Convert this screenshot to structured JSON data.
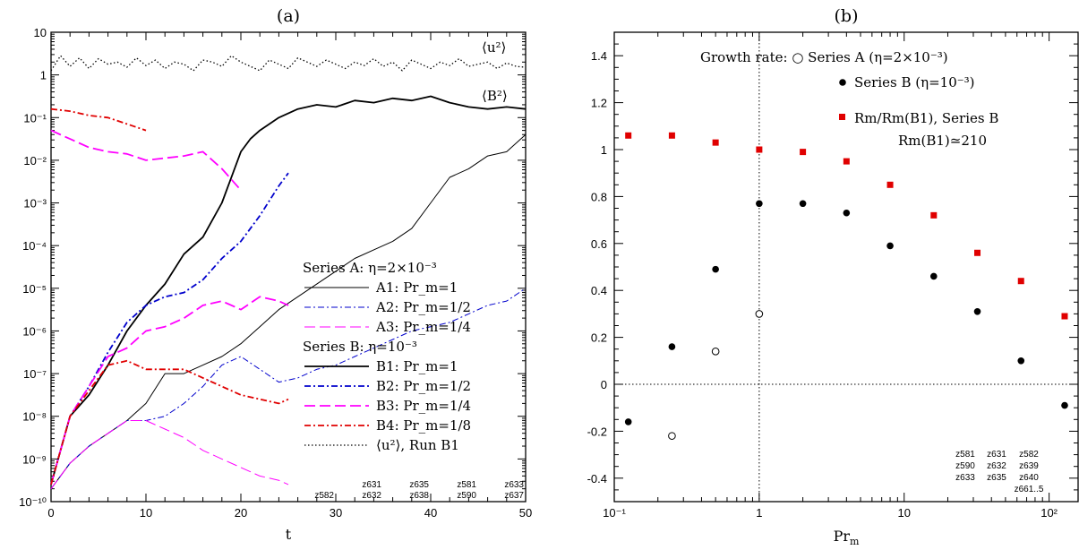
{
  "chart_data": [
    {
      "panel": "(a)",
      "type": "line",
      "xlabel": "t",
      "ylabel": "",
      "xlim": [
        0,
        50
      ],
      "ylim_log10": [
        -10,
        1
      ],
      "y_scale": "log",
      "x_ticks": [
        "0",
        "10",
        "20",
        "30",
        "40",
        "50"
      ],
      "y_ticks": [
        "10⁻¹⁰",
        "10⁻⁹",
        "10⁻⁸",
        "10⁻⁷",
        "10⁻⁶",
        "10⁻⁵",
        "10⁻⁴",
        "10⁻³",
        "10⁻²",
        "10⁻¹",
        "1",
        "10"
      ],
      "annotations": [
        "⟨u²⟩",
        "⟨B²⟩"
      ],
      "legend_groups": [
        {
          "title": "Series A: η=2×10⁻³",
          "entries": [
            "A1: Pr_m=1",
            "A2: Pr_m=1/2",
            "A3: Pr_m=1/4"
          ]
        },
        {
          "title": "Series B: η=10⁻³",
          "entries": [
            "B1: Pr_m=1",
            "B2: Pr_m=1/2",
            "B3: Pr_m=1/4",
            "B4: Pr_m=1/8",
            "⟨u²⟩, Run B1"
          ]
        }
      ],
      "run_labels": [
        {
          "x": 30,
          "top": "",
          "bottom": "z582"
        },
        {
          "x": 35,
          "top": "z631",
          "bottom": "z632"
        },
        {
          "x": 40,
          "top": "z635",
          "bottom": "z638"
        },
        {
          "x": 45,
          "top": "z581",
          "bottom": "z590"
        },
        {
          "x": 50,
          "top": "z633",
          "bottom": "z637"
        }
      ],
      "series": [
        {
          "name": "⟨u²⟩, Run B1",
          "style": "dotted",
          "color": "#000000",
          "x": [
            0,
            1,
            2,
            3,
            4,
            5,
            6,
            7,
            8,
            9,
            10,
            11,
            12,
            13,
            14,
            15,
            16,
            17,
            18,
            19,
            20,
            21,
            22,
            23,
            24,
            25,
            26,
            27,
            28,
            29,
            30,
            31,
            32,
            33,
            34,
            35,
            36,
            37,
            38,
            39,
            40,
            41,
            42,
            43,
            44,
            45,
            46,
            47,
            48,
            49,
            50
          ],
          "log10y": [
            0.1,
            0.45,
            0.2,
            0.4,
            0.15,
            0.38,
            0.25,
            0.3,
            0.18,
            0.4,
            0.22,
            0.35,
            0.15,
            0.3,
            0.25,
            0.1,
            0.35,
            0.3,
            0.2,
            0.45,
            0.3,
            0.2,
            0.1,
            0.35,
            0.25,
            0.15,
            0.4,
            0.3,
            0.2,
            0.35,
            0.25,
            0.15,
            0.3,
            0.22,
            0.38,
            0.2,
            0.3,
            0.1,
            0.35,
            0.25,
            0.15,
            0.3,
            0.22,
            0.38,
            0.2,
            0.25,
            0.3,
            0.15,
            0.28,
            0.2,
            0.18
          ]
        },
        {
          "name": "A1: Pr_m=1",
          "style": "solid-thin",
          "color": "#000000",
          "x": [
            0,
            2,
            4,
            6,
            8,
            10,
            12,
            14,
            16,
            18,
            20,
            22,
            24,
            26,
            28,
            30,
            32,
            34,
            36,
            38,
            40,
            42,
            44,
            46,
            48,
            50
          ],
          "log10y": [
            -9.7,
            -9.1,
            -8.7,
            -8.4,
            -8.1,
            -7.7,
            -7.0,
            -7.0,
            -6.8,
            -6.6,
            -6.3,
            -5.9,
            -5.5,
            -5.2,
            -4.9,
            -4.6,
            -4.3,
            -4.1,
            -3.9,
            -3.6,
            -3.0,
            -2.4,
            -2.2,
            -1.9,
            -1.8,
            -1.4
          ]
        },
        {
          "name": "A2: Pr_m=1/2",
          "style": "dashdot-thin",
          "color": "#0000cc",
          "x": [
            0,
            2,
            4,
            6,
            8,
            10,
            12,
            14,
            16,
            18,
            20,
            22,
            24,
            26,
            28,
            30,
            32,
            34,
            36,
            38,
            40,
            42,
            44,
            46,
            48,
            50
          ],
          "log10y": [
            -9.7,
            -9.1,
            -8.7,
            -8.4,
            -8.1,
            -8.1,
            -8.0,
            -7.7,
            -7.3,
            -6.8,
            -6.6,
            -6.9,
            -7.2,
            -7.1,
            -6.9,
            -6.8,
            -6.6,
            -6.4,
            -6.2,
            -6.0,
            -5.9,
            -5.8,
            -5.6,
            -5.4,
            -5.3,
            -5.0
          ]
        },
        {
          "name": "A3: Pr_m=1/4",
          "style": "dash-thin",
          "color": "#ff00ff",
          "x": [
            0,
            2,
            4,
            6,
            8,
            10,
            12,
            14,
            16,
            18,
            20,
            22,
            24,
            25
          ],
          "log10y": [
            -9.7,
            -9.1,
            -8.7,
            -8.4,
            -8.1,
            -8.1,
            -8.3,
            -8.5,
            -8.8,
            -9.0,
            -9.2,
            -9.4,
            -9.5,
            -9.6
          ]
        },
        {
          "name": "B1: Pr_m=1",
          "style": "solid",
          "color": "#000000",
          "x": [
            0,
            2,
            4,
            6,
            8,
            10,
            12,
            14,
            16,
            18,
            20,
            21,
            22,
            24,
            26,
            28,
            30,
            32,
            34,
            36,
            38,
            40,
            42,
            44,
            46,
            48,
            50
          ],
          "log10y": [
            -9.6,
            -8.0,
            -7.5,
            -6.8,
            -6.0,
            -5.4,
            -4.9,
            -4.2,
            -3.8,
            -3.0,
            -1.8,
            -1.5,
            -1.3,
            -1.0,
            -0.8,
            -0.7,
            -0.75,
            -0.6,
            -0.65,
            -0.55,
            -0.6,
            -0.5,
            -0.65,
            -0.75,
            -0.8,
            -0.75,
            -0.8
          ]
        },
        {
          "name": "B2: Pr_m=1/2",
          "style": "dashdot",
          "color": "#0000cc",
          "x": [
            0,
            2,
            4,
            6,
            8,
            10,
            12,
            14,
            16,
            18,
            20,
            22,
            24,
            25
          ],
          "log10y": [
            -9.6,
            -8.0,
            -7.3,
            -6.5,
            -5.8,
            -5.4,
            -5.2,
            -5.1,
            -4.8,
            -4.3,
            -3.9,
            -3.3,
            -2.6,
            -2.3
          ]
        },
        {
          "name": "B3: Pr_m=1/4",
          "style": "dash",
          "color": "#ff00ff",
          "x": [
            0,
            2,
            4,
            6,
            8,
            10,
            12,
            14,
            16,
            18,
            20,
            22,
            24,
            25
          ],
          "log10y": [
            -9.6,
            -8.0,
            -7.3,
            -6.6,
            -6.4,
            -6.0,
            -5.9,
            -5.7,
            -5.4,
            -5.3,
            -5.5,
            -5.2,
            -5.3,
            -5.4
          ]
        },
        {
          "name": "B4: Pr_m=1/8",
          "style": "dashdot",
          "color": "#e00000",
          "x": [
            0,
            2,
            4,
            6,
            8,
            10,
            12,
            14,
            16,
            18,
            20,
            22,
            24,
            25
          ],
          "log10y": [
            -9.6,
            -8.0,
            -7.4,
            -6.8,
            -6.7,
            -6.9,
            -6.9,
            -6.9,
            -7.1,
            -7.3,
            -7.5,
            -7.6,
            -7.7,
            -7.6
          ]
        },
        {
          "name": "B3 early",
          "style": "dash",
          "color": "#ff00ff",
          "x": [
            0,
            2,
            4,
            6,
            8,
            10,
            12,
            14,
            16,
            18,
            20
          ],
          "log10y": [
            -1.3,
            -1.5,
            -1.7,
            -1.8,
            -1.85,
            -2.0,
            -1.95,
            -1.9,
            -1.8,
            -2.2,
            -2.7
          ]
        },
        {
          "name": "B4 early",
          "style": "dashdot",
          "color": "#e00000",
          "x": [
            0,
            2,
            4,
            6,
            8,
            10
          ],
          "log10y": [
            -0.8,
            -0.85,
            -0.95,
            -1.0,
            -1.15,
            -1.3
          ]
        }
      ]
    },
    {
      "panel": "(b)",
      "type": "scatter",
      "xlabel": "Pr_m",
      "ylabel": "",
      "x_scale": "log",
      "xlim_log10": [
        -1,
        2.2
      ],
      "ylim": [
        -0.5,
        1.5
      ],
      "x_ticks": [
        "10⁻¹",
        "1",
        "10",
        "10²"
      ],
      "y_ticks": [
        "-0.4",
        "-0.2",
        "0",
        "0.2",
        "0.4",
        "0.6",
        "0.8",
        "1",
        "1.2",
        "1.4"
      ],
      "legend": [
        {
          "marker": "open-circle",
          "label": "Growth rate:  ○ Series A (η=2×10⁻³)"
        },
        {
          "marker": "filled-circle",
          "label": "Series B (η=10⁻³)"
        },
        {
          "marker": "red-square",
          "label": "Rm/Rm(B1), Series B"
        },
        {
          "marker": "none",
          "label": "Rm(B1)≃210"
        }
      ],
      "series": [
        {
          "name": "Series A (η=2×10⁻³)",
          "marker": "open-circle",
          "x": [
            0.25,
            0.5,
            1
          ],
          "y": [
            -0.22,
            0.14,
            0.3
          ]
        },
        {
          "name": "Series B (η=10⁻³)",
          "marker": "filled-circle",
          "x": [
            0.125,
            0.25,
            0.5,
            1,
            2,
            4,
            8,
            16,
            32,
            64,
            128
          ],
          "y": [
            -0.16,
            0.16,
            0.49,
            0.77,
            0.77,
            0.73,
            0.59,
            0.46,
            0.31,
            0.1,
            -0.09
          ]
        },
        {
          "name": "Rm/Rm(B1), Series B",
          "marker": "red-square",
          "x": [
            0.125,
            0.25,
            0.5,
            1,
            2,
            4,
            8,
            16,
            32,
            64,
            128
          ],
          "y": [
            1.06,
            1.06,
            1.03,
            1.0,
            0.99,
            0.95,
            0.85,
            0.72,
            0.56,
            0.44,
            0.29
          ]
        }
      ],
      "run_labels": [
        [
          "",
          "z581",
          "z631",
          "z582"
        ],
        [
          "",
          "z590",
          "z632",
          "z639"
        ],
        [
          "",
          "z633",
          "z635",
          "z640"
        ],
        [
          "",
          "",
          "",
          "z661..5"
        ]
      ]
    }
  ]
}
